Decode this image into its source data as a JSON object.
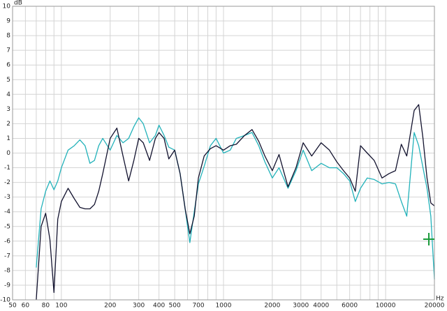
{
  "chart_data": {
    "type": "line",
    "y_unit": "dB",
    "x_unit": "Hz",
    "log_x": true,
    "grid": true,
    "xlim": [
      50,
      20000
    ],
    "ylim": [
      -10,
      10
    ],
    "xticks": [
      50,
      60,
      80,
      100,
      200,
      300,
      400,
      500,
      700,
      1000,
      2000,
      3000,
      4000,
      6000,
      10000,
      20000
    ],
    "x_minor_grid": [
      70,
      90,
      600,
      800,
      900,
      5000,
      7000,
      8000,
      9000
    ],
    "yticks": [
      10,
      9,
      8,
      7,
      6,
      5,
      4,
      3,
      2,
      1,
      0,
      -1,
      -2,
      -3,
      -4,
      -5,
      -6,
      -7,
      -8,
      -9,
      -10
    ],
    "x": [
      70,
      75,
      80,
      85,
      90,
      95,
      100,
      110,
      120,
      130,
      140,
      150,
      160,
      170,
      180,
      200,
      220,
      240,
      260,
      280,
      300,
      320,
      350,
      380,
      400,
      430,
      460,
      500,
      540,
      580,
      620,
      660,
      700,
      760,
      830,
      900,
      1000,
      1100,
      1200,
      1350,
      1500,
      1650,
      1800,
      2000,
      2200,
      2500,
      2800,
      3100,
      3500,
      4000,
      4500,
      5000,
      5500,
      6000,
      6500,
      7000,
      7700,
      8500,
      9500,
      10500,
      11500,
      12500,
      13500,
      15000,
      16000,
      17000,
      18000,
      19000,
      20000
    ],
    "series": [
      {
        "color": "#12122e",
        "values": [
          -10.0,
          -5.0,
          -4.1,
          -5.9,
          -9.5,
          -4.5,
          -3.3,
          -2.4,
          -3.1,
          -3.7,
          -3.8,
          -3.8,
          -3.5,
          -2.6,
          -1.4,
          1.0,
          1.7,
          -0.2,
          -1.9,
          -0.5,
          1.0,
          0.7,
          -0.5,
          1.0,
          1.4,
          1.0,
          -0.4,
          0.2,
          -1.4,
          -3.8,
          -5.5,
          -4.3,
          -1.7,
          -0.2,
          0.3,
          0.5,
          0.2,
          0.5,
          0.6,
          1.2,
          1.6,
          0.8,
          -0.2,
          -1.2,
          -0.1,
          -2.3,
          -1.0,
          0.7,
          -0.2,
          0.7,
          0.2,
          -0.6,
          -1.2,
          -1.7,
          -2.6,
          0.5,
          0.0,
          -0.5,
          -1.7,
          -1.4,
          -1.2,
          0.6,
          -0.2,
          2.9,
          3.3,
          1.0,
          -1.7,
          -3.4,
          -3.6
        ]
      },
      {
        "color": "#22b2ba",
        "values": [
          -7.8,
          -3.8,
          -2.6,
          -1.9,
          -2.5,
          -1.9,
          -1.0,
          0.2,
          0.5,
          0.9,
          0.5,
          -0.7,
          -0.5,
          0.5,
          1.0,
          0.2,
          1.2,
          0.7,
          1.0,
          1.8,
          2.4,
          2.0,
          0.7,
          1.2,
          1.9,
          1.2,
          0.4,
          0.2,
          -1.4,
          -3.8,
          -6.1,
          -4.0,
          -2.1,
          -0.9,
          0.5,
          1.0,
          0.0,
          0.2,
          1.0,
          1.2,
          1.4,
          0.5,
          -0.6,
          -1.7,
          -1.0,
          -2.4,
          -1.2,
          0.2,
          -1.2,
          -0.7,
          -1.0,
          -1.0,
          -1.4,
          -1.9,
          -3.3,
          -2.4,
          -1.7,
          -1.8,
          -2.1,
          -2.0,
          -2.1,
          -3.3,
          -4.3,
          1.4,
          0.5,
          -1.0,
          -2.4,
          -4.3,
          -8.6
        ]
      }
    ]
  }
}
